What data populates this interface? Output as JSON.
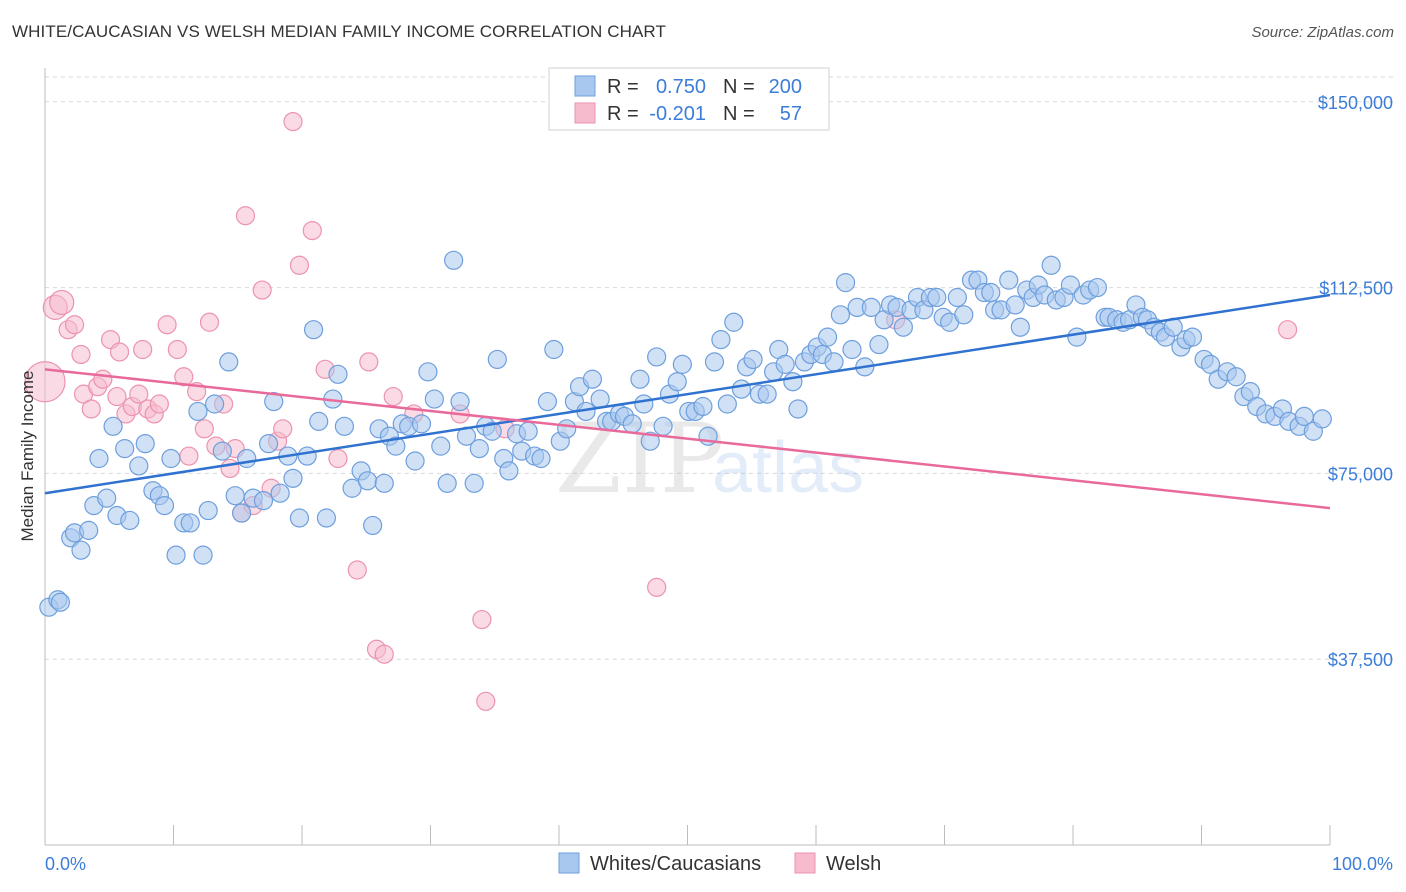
{
  "title": "WHITE/CAUCASIAN VS WELSH MEDIAN FAMILY INCOME CORRELATION CHART",
  "source": "Source: ZipAtlas.com",
  "watermark": {
    "zip": "ZIP",
    "atlas": "atlas"
  },
  "colors": {
    "blue_fill": "#a9c8ef",
    "blue_stroke": "#6e9fdd",
    "blue_line": "#2f72d0",
    "pink_fill": "#f6bccd",
    "pink_stroke": "#ec93ae",
    "pink_line": "#e8699a",
    "tick_text": "#3b7dd8",
    "grid": "#d9d9d9"
  },
  "legend_top": {
    "rows": [
      {
        "r_label": "R =",
        "r_value": "0.750",
        "n_label": "N =",
        "n_value": "200",
        "color": "blue"
      },
      {
        "r_label": "R =",
        "r_value": "-0.201",
        "n_label": "N =",
        "n_value": "57",
        "color": "pink"
      }
    ]
  },
  "chart_data": {
    "type": "scatter",
    "title": "WHITE/CAUCASIAN VS WELSH MEDIAN FAMILY INCOME CORRELATION CHART",
    "xlabel": "",
    "ylabel": "Median Family Income",
    "xlim": [
      0,
      100
    ],
    "ylim": [
      0,
      155000
    ],
    "x_tick_labels": [
      "0.0%",
      "100.0%"
    ],
    "y_ticks": [
      37500,
      75000,
      112500,
      150000
    ],
    "y_tick_labels": [
      "$37,500",
      "$75,000",
      "$112,500",
      "$150,000"
    ],
    "grid": true,
    "legend_position": "bottom-center",
    "series": [
      {
        "name": "Whites/Caucasians",
        "color": "blue",
        "trendline": {
          "x": [
            0,
            100
          ],
          "y": [
            71000,
            111000
          ]
        },
        "points": [
          [
            0.3,
            48000
          ],
          [
            1.0,
            49500
          ],
          [
            1.2,
            49000
          ],
          [
            2.0,
            62000
          ],
          [
            2.3,
            63000
          ],
          [
            2.8,
            59500
          ],
          [
            3.4,
            63500
          ],
          [
            3.8,
            68500
          ],
          [
            4.2,
            78000
          ],
          [
            4.8,
            70000
          ],
          [
            5.3,
            84500
          ],
          [
            5.6,
            66500
          ],
          [
            6.2,
            80000
          ],
          [
            6.6,
            65500
          ],
          [
            7.3,
            76500
          ],
          [
            7.8,
            81000
          ],
          [
            8.4,
            71500
          ],
          [
            8.9,
            70500
          ],
          [
            9.3,
            68500
          ],
          [
            9.8,
            78000
          ],
          [
            10.2,
            58500
          ],
          [
            10.8,
            65000
          ],
          [
            11.3,
            65000
          ],
          [
            11.9,
            87500
          ],
          [
            12.3,
            58500
          ],
          [
            12.7,
            67500
          ],
          [
            13.2,
            89000
          ],
          [
            13.8,
            79500
          ],
          [
            14.3,
            97500
          ],
          [
            14.8,
            70500
          ],
          [
            15.3,
            67000
          ],
          [
            15.7,
            78000
          ],
          [
            16.2,
            70000
          ],
          [
            17.0,
            69500
          ],
          [
            17.4,
            81000
          ],
          [
            17.8,
            89500
          ],
          [
            18.3,
            71000
          ],
          [
            18.9,
            78500
          ],
          [
            19.3,
            74000
          ],
          [
            19.8,
            66000
          ],
          [
            20.4,
            78500
          ],
          [
            20.9,
            104000
          ],
          [
            21.3,
            85500
          ],
          [
            21.9,
            66000
          ],
          [
            22.4,
            90000
          ],
          [
            22.8,
            95000
          ],
          [
            23.3,
            84500
          ],
          [
            23.9,
            72000
          ],
          [
            24.6,
            75500
          ],
          [
            25.1,
            73500
          ],
          [
            25.5,
            64500
          ],
          [
            26.0,
            84000
          ],
          [
            26.4,
            73000
          ],
          [
            26.8,
            82500
          ],
          [
            27.3,
            80500
          ],
          [
            27.8,
            85000
          ],
          [
            28.3,
            84500
          ],
          [
            28.8,
            77500
          ],
          [
            29.3,
            85000
          ],
          [
            29.8,
            95500
          ],
          [
            30.3,
            90000
          ],
          [
            30.8,
            80500
          ],
          [
            31.3,
            73000
          ],
          [
            31.8,
            118000
          ],
          [
            32.3,
            89500
          ],
          [
            32.8,
            82500
          ],
          [
            33.4,
            73000
          ],
          [
            33.8,
            80000
          ],
          [
            34.3,
            84500
          ],
          [
            34.8,
            83500
          ],
          [
            35.2,
            98000
          ],
          [
            35.7,
            78000
          ],
          [
            36.1,
            75500
          ],
          [
            36.7,
            83000
          ],
          [
            37.1,
            79500
          ],
          [
            37.6,
            83500
          ],
          [
            38.1,
            78500
          ],
          [
            38.6,
            78000
          ],
          [
            39.1,
            89500
          ],
          [
            39.6,
            100000
          ],
          [
            40.1,
            81500
          ],
          [
            40.6,
            84000
          ],
          [
            41.2,
            89500
          ],
          [
            41.6,
            92500
          ],
          [
            42.1,
            87500
          ],
          [
            42.6,
            94000
          ],
          [
            43.2,
            90000
          ],
          [
            43.7,
            85500
          ],
          [
            44.1,
            85500
          ],
          [
            44.7,
            87000
          ],
          [
            45.1,
            86500
          ],
          [
            45.7,
            85000
          ],
          [
            46.3,
            94000
          ],
          [
            46.6,
            89000
          ],
          [
            47.1,
            81500
          ],
          [
            47.6,
            98500
          ],
          [
            48.1,
            84500
          ],
          [
            48.6,
            91000
          ],
          [
            49.2,
            93500
          ],
          [
            49.6,
            97000
          ],
          [
            50.1,
            87500
          ],
          [
            50.6,
            87500
          ],
          [
            51.2,
            88500
          ],
          [
            51.6,
            82500
          ],
          [
            52.1,
            97500
          ],
          [
            52.6,
            102000
          ],
          [
            53.1,
            89000
          ],
          [
            53.6,
            105500
          ],
          [
            54.2,
            92000
          ],
          [
            54.6,
            96500
          ],
          [
            55.1,
            98000
          ],
          [
            55.6,
            91000
          ],
          [
            56.2,
            91000
          ],
          [
            56.7,
            95500
          ],
          [
            57.1,
            100000
          ],
          [
            57.6,
            97000
          ],
          [
            58.2,
            93500
          ],
          [
            58.6,
            88000
          ],
          [
            59.1,
            97500
          ],
          [
            59.6,
            99000
          ],
          [
            60.1,
            100500
          ],
          [
            60.5,
            99000
          ],
          [
            60.9,
            102500
          ],
          [
            61.4,
            97500
          ],
          [
            61.9,
            107000
          ],
          [
            62.3,
            113500
          ],
          [
            62.8,
            100000
          ],
          [
            63.2,
            108500
          ],
          [
            63.8,
            96500
          ],
          [
            64.3,
            108500
          ],
          [
            64.9,
            101000
          ],
          [
            65.3,
            106000
          ],
          [
            65.8,
            109000
          ],
          [
            66.3,
            108500
          ],
          [
            66.8,
            104500
          ],
          [
            67.4,
            108000
          ],
          [
            67.9,
            110500
          ],
          [
            68.4,
            108000
          ],
          [
            68.9,
            110500
          ],
          [
            69.4,
            110500
          ],
          [
            69.9,
            106500
          ],
          [
            70.4,
            105500
          ],
          [
            71.0,
            110500
          ],
          [
            71.5,
            107000
          ],
          [
            72.1,
            114000
          ],
          [
            72.6,
            114000
          ],
          [
            73.1,
            111500
          ],
          [
            73.6,
            111500
          ],
          [
            73.9,
            108000
          ],
          [
            74.4,
            108000
          ],
          [
            75.0,
            114000
          ],
          [
            75.5,
            109000
          ],
          [
            75.9,
            104500
          ],
          [
            76.4,
            112000
          ],
          [
            76.9,
            110500
          ],
          [
            77.3,
            113000
          ],
          [
            77.8,
            111000
          ],
          [
            78.3,
            117000
          ],
          [
            78.7,
            110000
          ],
          [
            79.3,
            110500
          ],
          [
            79.8,
            113000
          ],
          [
            80.3,
            102500
          ],
          [
            80.8,
            111000
          ],
          [
            81.3,
            112000
          ],
          [
            81.9,
            112500
          ],
          [
            82.5,
            106500
          ],
          [
            82.8,
            106500
          ],
          [
            83.4,
            106000
          ],
          [
            83.9,
            105500
          ],
          [
            84.4,
            106000
          ],
          [
            84.9,
            109000
          ],
          [
            85.4,
            106500
          ],
          [
            85.8,
            106000
          ],
          [
            86.3,
            104500
          ],
          [
            86.8,
            103500
          ],
          [
            87.2,
            102500
          ],
          [
            87.8,
            104500
          ],
          [
            88.4,
            100500
          ],
          [
            88.8,
            102000
          ],
          [
            89.3,
            102500
          ],
          [
            90.2,
            98000
          ],
          [
            90.7,
            97000
          ],
          [
            91.3,
            94000
          ],
          [
            92.0,
            95500
          ],
          [
            92.7,
            94500
          ],
          [
            93.3,
            90500
          ],
          [
            93.8,
            91500
          ],
          [
            94.3,
            88500
          ],
          [
            95.0,
            87000
          ],
          [
            95.7,
            86500
          ],
          [
            96.3,
            88000
          ],
          [
            96.8,
            85500
          ],
          [
            97.6,
            84500
          ],
          [
            98.0,
            86500
          ],
          [
            98.7,
            83500
          ],
          [
            99.4,
            86000
          ]
        ]
      },
      {
        "name": "Welsh",
        "color": "pink",
        "trendline": {
          "x": [
            0,
            100
          ],
          "y": [
            96000,
            68000
          ]
        },
        "points": [
          [
            0.0,
            93500
          ],
          [
            0.8,
            108500
          ],
          [
            1.3,
            109500
          ],
          [
            1.8,
            104000
          ],
          [
            2.3,
            105000
          ],
          [
            2.8,
            99000
          ],
          [
            3.0,
            91000
          ],
          [
            3.6,
            88000
          ],
          [
            4.1,
            92500
          ],
          [
            4.5,
            94000
          ],
          [
            5.1,
            102000
          ],
          [
            5.6,
            90500
          ],
          [
            5.8,
            99500
          ],
          [
            6.3,
            87000
          ],
          [
            6.8,
            88500
          ],
          [
            7.3,
            91000
          ],
          [
            7.6,
            100000
          ],
          [
            8.0,
            88000
          ],
          [
            8.5,
            87000
          ],
          [
            8.9,
            89000
          ],
          [
            9.5,
            105000
          ],
          [
            10.3,
            100000
          ],
          [
            10.8,
            94500
          ],
          [
            11.2,
            78500
          ],
          [
            11.8,
            91500
          ],
          [
            12.4,
            84000
          ],
          [
            12.8,
            105500
          ],
          [
            13.3,
            80500
          ],
          [
            13.9,
            89000
          ],
          [
            14.4,
            76000
          ],
          [
            14.8,
            80000
          ],
          [
            15.3,
            67000
          ],
          [
            15.6,
            127000
          ],
          [
            16.2,
            68500
          ],
          [
            16.9,
            112000
          ],
          [
            17.6,
            72000
          ],
          [
            18.1,
            81500
          ],
          [
            18.5,
            84000
          ],
          [
            19.3,
            146000
          ],
          [
            19.8,
            117000
          ],
          [
            20.8,
            124000
          ],
          [
            21.8,
            96000
          ],
          [
            22.8,
            78000
          ],
          [
            24.3,
            55500
          ],
          [
            25.2,
            97500
          ],
          [
            25.8,
            39500
          ],
          [
            26.4,
            38500
          ],
          [
            27.1,
            90500
          ],
          [
            28.7,
            87000
          ],
          [
            32.3,
            87000
          ],
          [
            34.0,
            45500
          ],
          [
            34.3,
            29000
          ],
          [
            35.8,
            84000
          ],
          [
            47.6,
            52000
          ],
          [
            66.2,
            106000
          ],
          [
            96.7,
            104000
          ]
        ]
      }
    ]
  },
  "legend_bottom": {
    "items": [
      "Whites/Caucasians",
      "Welsh"
    ]
  }
}
